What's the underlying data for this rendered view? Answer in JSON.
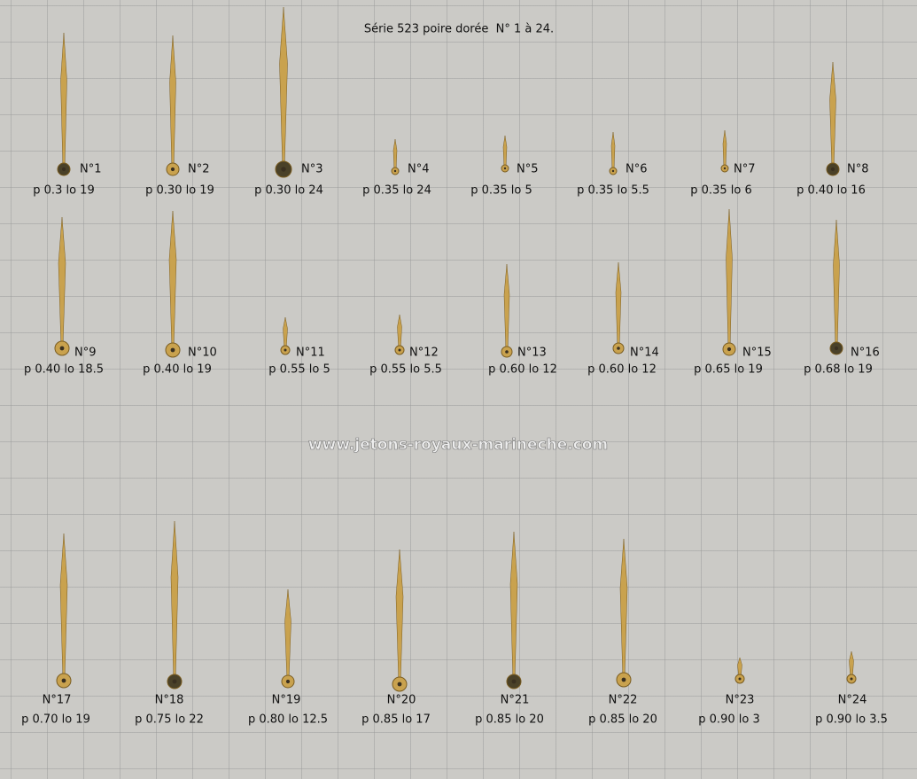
{
  "title": "Série 523 poire dorée  N° 1 à 24.",
  "watermark": "www.jetons-royaux-marineche.com",
  "items": [
    {
      "label": "N°1",
      "spec": "p 0.3 lo 19"
    },
    {
      "label": "N°2",
      "spec": "p 0.30 lo 19"
    },
    {
      "label": "N°3",
      "spec": "p 0.30 lo 24"
    },
    {
      "label": "N°4",
      "spec": "p 0.35 lo 24"
    },
    {
      "label": "N°5",
      "spec": "p 0.35 lo 5"
    },
    {
      "label": "N°6",
      "spec": "p 0.35 lo 5.5"
    },
    {
      "label": "N°7",
      "spec": "p 0.35 lo 6"
    },
    {
      "label": "N°8",
      "spec": "p 0.40 lo 16"
    },
    {
      "label": "N°9",
      "spec": "p 0.40 lo 18.5"
    },
    {
      "label": "N°10",
      "spec": "p 0.40 lo 19"
    },
    {
      "label": "N°11",
      "spec": "p 0.55 lo 5"
    },
    {
      "label": "N°12",
      "spec": "p 0.55 lo 5.5"
    },
    {
      "label": "N°13",
      "spec": "p 0.60 lo 12"
    },
    {
      "label": "N°14",
      "spec": "p 0.60 lo 12"
    },
    {
      "label": "N°15",
      "spec": "p 0.65 lo 19"
    },
    {
      "label": "N°16",
      "spec": "p 0.68 lo 19"
    },
    {
      "label": "N°17",
      "spec": "p 0.70 lo 19"
    },
    {
      "label": "N°18",
      "spec": "p 0.75 lo 22"
    },
    {
      "label": "N°19",
      "spec": "p 0.80 lo 12.5"
    },
    {
      "label": "N°20",
      "spec": "p 0.85 lo 17"
    },
    {
      "label": "N°21",
      "spec": "p 0.85 lo 20"
    },
    {
      "label": "N°22",
      "spec": "p 0.85 lo 20"
    },
    {
      "label": "N°23",
      "spec": "p 0.90 lo 3"
    },
    {
      "label": "N°24",
      "spec": "p 0.90 lo 3.5"
    }
  ]
}
